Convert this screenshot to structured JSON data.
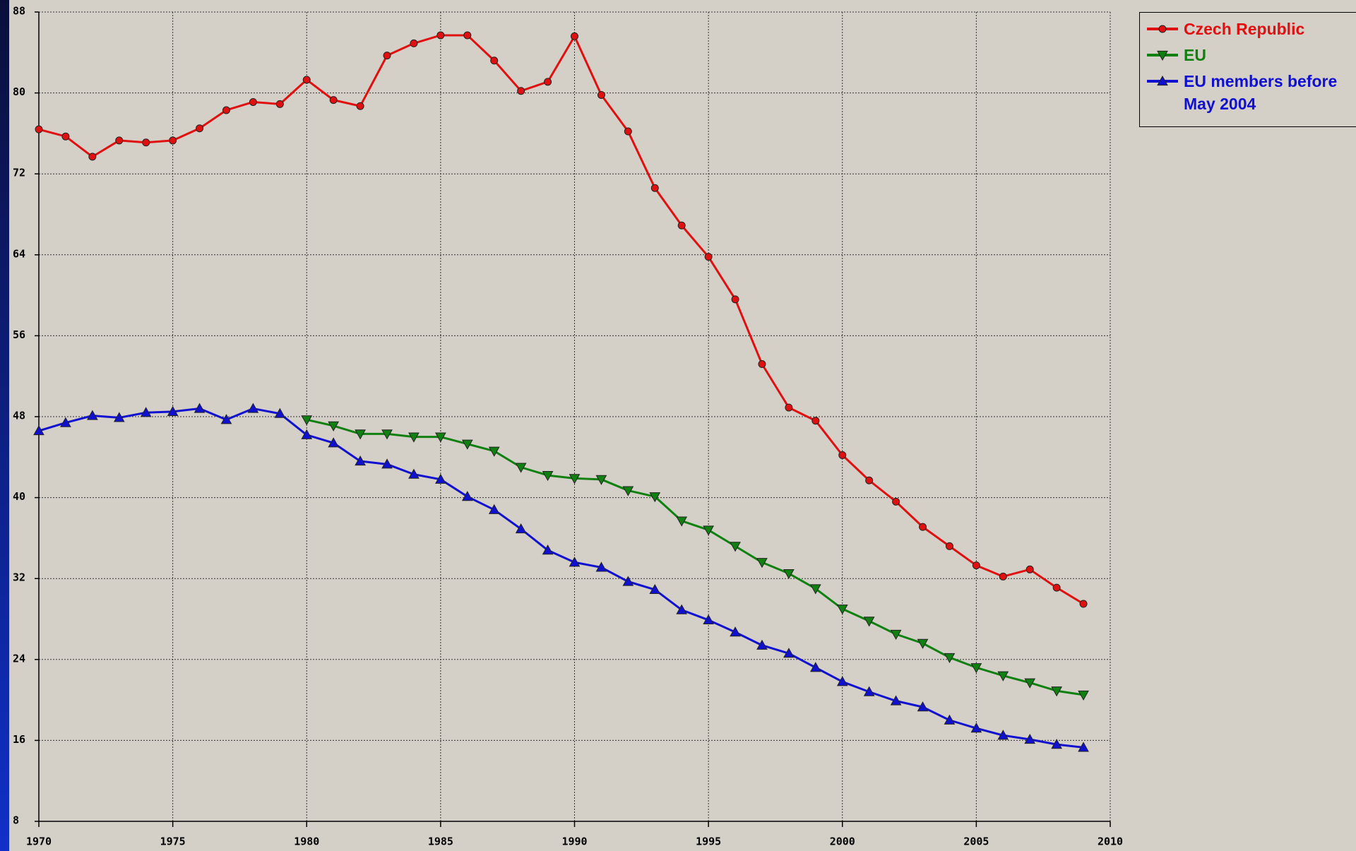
{
  "chart_data": {
    "type": "line",
    "x": [
      1970,
      1971,
      1972,
      1973,
      1974,
      1975,
      1976,
      1977,
      1978,
      1979,
      1980,
      1981,
      1982,
      1983,
      1984,
      1985,
      1986,
      1987,
      1988,
      1989,
      1990,
      1991,
      1992,
      1993,
      1994,
      1995,
      1996,
      1997,
      1998,
      1999,
      2000,
      2001,
      2002,
      2003,
      2004,
      2005,
      2006,
      2007,
      2008,
      2009
    ],
    "series": [
      {
        "name": "Czech Republic",
        "color": "#e01010",
        "marker": "circle",
        "values": [
          76.4,
          75.7,
          73.7,
          75.3,
          75.1,
          75.3,
          76.5,
          78.3,
          79.1,
          78.9,
          81.3,
          79.3,
          78.7,
          83.7,
          84.9,
          85.7,
          85.7,
          83.2,
          80.2,
          81.1,
          85.6,
          79.8,
          76.2,
          70.6,
          66.9,
          63.8,
          59.6,
          53.2,
          48.9,
          47.6,
          44.2,
          41.7,
          39.6,
          37.1,
          35.2,
          33.3,
          32.2,
          32.9,
          31.1,
          29.5
        ]
      },
      {
        "name": "EU",
        "color": "#108010",
        "marker": "triangle-down",
        "values": [
          null,
          null,
          null,
          null,
          null,
          null,
          null,
          null,
          null,
          null,
          47.7,
          47.1,
          46.3,
          46.3,
          46.0,
          46.0,
          45.3,
          44.6,
          43.0,
          42.2,
          41.9,
          41.8,
          40.7,
          40.1,
          37.7,
          36.8,
          35.2,
          33.6,
          32.5,
          31.0,
          29.0,
          27.8,
          26.5,
          25.6,
          24.2,
          23.2,
          22.4,
          21.7,
          20.9,
          20.5
        ]
      },
      {
        "name": "EU members before May 2004",
        "color": "#1010d0",
        "marker": "triangle-up",
        "values": [
          46.6,
          47.4,
          48.1,
          47.9,
          48.4,
          48.5,
          48.8,
          47.7,
          48.8,
          48.3,
          46.2,
          45.4,
          43.6,
          43.3,
          42.3,
          41.8,
          40.1,
          38.8,
          36.9,
          34.8,
          33.6,
          33.1,
          31.7,
          30.9,
          28.9,
          27.9,
          26.7,
          25.4,
          24.6,
          23.2,
          21.8,
          20.8,
          19.9,
          19.3,
          18.0,
          17.2,
          16.5,
          16.1,
          15.6,
          15.3
        ]
      }
    ],
    "xlim": [
      1970,
      2010
    ],
    "xticks": [
      1970,
      1975,
      1980,
      1985,
      1990,
      1995,
      2000,
      2005,
      2010
    ],
    "ylim": [
      8,
      88
    ],
    "yticks": [
      8,
      16,
      24,
      32,
      40,
      48,
      56,
      64,
      72,
      80,
      88
    ],
    "grid": true,
    "legend": "upper right"
  }
}
